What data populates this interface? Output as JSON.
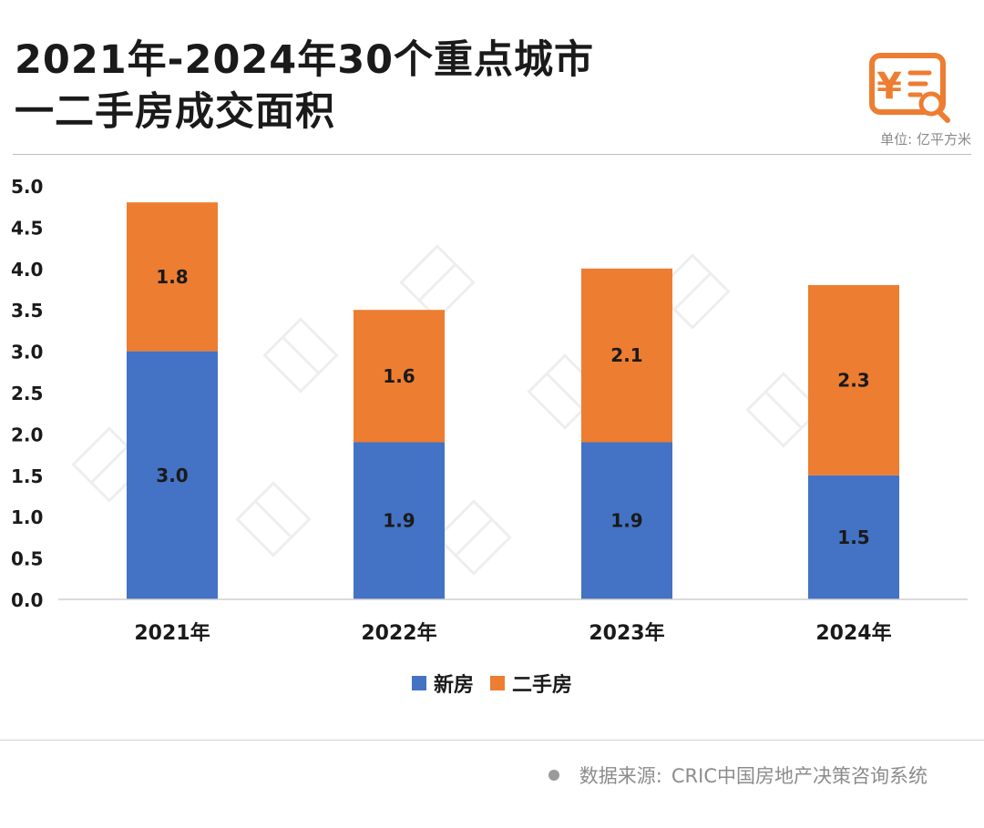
{
  "title": {
    "line1": "2021年-2024年30个重点城市",
    "line2": "一二手房成交面积"
  },
  "unit_label": "单位: 亿平方米",
  "source": {
    "label": "数据来源:",
    "text": "CRIC中国房地产决策咨询系统"
  },
  "colors": {
    "new": "#4472C4",
    "second": "#ED7D31"
  },
  "chart_data": {
    "type": "bar",
    "stacked": true,
    "categories": [
      "2021年",
      "2022年",
      "2023年",
      "2024年"
    ],
    "series": [
      {
        "name": "新房",
        "values": [
          3.0,
          1.9,
          1.9,
          1.5
        ]
      },
      {
        "name": "二手房",
        "values": [
          1.8,
          1.6,
          2.1,
          2.3
        ]
      }
    ],
    "ylim": [
      0,
      5
    ],
    "yticks": [
      "0.0",
      "0.5",
      "1.0",
      "1.5",
      "2.0",
      "2.5",
      "3.0",
      "3.5",
      "4.0",
      "4.5",
      "5.0"
    ],
    "legend_position": "bottom",
    "grid": false
  }
}
